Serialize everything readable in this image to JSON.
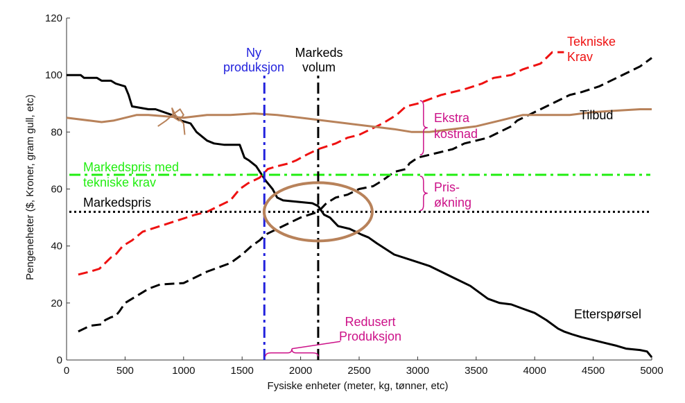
{
  "chart_data": {
    "type": "line",
    "xlabel": "Fysiske enheter (meter, kg, tønner, etc)",
    "ylabel": "Pengeneheter ($, Kroner, gram gull, etc)",
    "xlim": [
      0,
      5000
    ],
    "ylim": [
      0,
      120
    ],
    "xticks": [
      0,
      500,
      1000,
      1500,
      2000,
      2500,
      3000,
      3500,
      4000,
      4500,
      5000
    ],
    "yticks": [
      0,
      20,
      40,
      60,
      80,
      100,
      120
    ],
    "grid": false,
    "legend": "none",
    "series": [
      {
        "key": "demand",
        "name": "Etterspørsel",
        "color": "#000000",
        "style": "solid",
        "points": [
          [
            0,
            100
          ],
          [
            120,
            100
          ],
          [
            150,
            99
          ],
          [
            260,
            99
          ],
          [
            300,
            98
          ],
          [
            380,
            98
          ],
          [
            420,
            97
          ],
          [
            500,
            96
          ],
          [
            530,
            93
          ],
          [
            560,
            89
          ],
          [
            700,
            88
          ],
          [
            760,
            88
          ],
          [
            900,
            86
          ],
          [
            980,
            84
          ],
          [
            1060,
            83
          ],
          [
            1110,
            80
          ],
          [
            1200,
            77
          ],
          [
            1260,
            76
          ],
          [
            1350,
            75.5
          ],
          [
            1480,
            75.5
          ],
          [
            1520,
            71
          ],
          [
            1560,
            70
          ],
          [
            1620,
            68
          ],
          [
            1700,
            63
          ],
          [
            1760,
            60
          ],
          [
            1800,
            57
          ],
          [
            1850,
            56
          ],
          [
            2100,
            55
          ],
          [
            2150,
            54
          ],
          [
            2200,
            51
          ],
          [
            2250,
            50
          ],
          [
            2320,
            47
          ],
          [
            2420,
            46
          ],
          [
            2520,
            44
          ],
          [
            2580,
            43
          ],
          [
            2650,
            41
          ],
          [
            2800,
            37
          ],
          [
            2950,
            35
          ],
          [
            3100,
            33
          ],
          [
            3200,
            31
          ],
          [
            3300,
            29
          ],
          [
            3350,
            28
          ],
          [
            3450,
            26
          ],
          [
            3600,
            21.5
          ],
          [
            3700,
            20
          ],
          [
            3800,
            19.5
          ],
          [
            3900,
            18
          ],
          [
            4000,
            16.5
          ],
          [
            4100,
            14
          ],
          [
            4200,
            11
          ],
          [
            4250,
            10
          ],
          [
            4320,
            9
          ],
          [
            4400,
            8
          ],
          [
            4600,
            6
          ],
          [
            4700,
            5
          ],
          [
            4780,
            4
          ],
          [
            4900,
            3.5
          ],
          [
            4960,
            3
          ],
          [
            5000,
            1
          ]
        ]
      },
      {
        "key": "supply",
        "name": "Tilbud",
        "color": "#000000",
        "style": "dashed",
        "points": [
          [
            100,
            10
          ],
          [
            200,
            12
          ],
          [
            300,
            12.5
          ],
          [
            330,
            14
          ],
          [
            380,
            15
          ],
          [
            420,
            15.5
          ],
          [
            450,
            17
          ],
          [
            500,
            20
          ],
          [
            700,
            25
          ],
          [
            800,
            26.5
          ],
          [
            1000,
            27
          ],
          [
            1100,
            29
          ],
          [
            1200,
            31
          ],
          [
            1400,
            34
          ],
          [
            1500,
            37
          ],
          [
            1580,
            40
          ],
          [
            1650,
            42
          ],
          [
            1700,
            44
          ],
          [
            1800,
            46
          ],
          [
            1900,
            48
          ],
          [
            2000,
            50
          ],
          [
            2150,
            52
          ],
          [
            2220,
            55
          ],
          [
            2300,
            57
          ],
          [
            2400,
            58
          ],
          [
            2500,
            60
          ],
          [
            2620,
            61
          ],
          [
            2700,
            63
          ],
          [
            2800,
            66
          ],
          [
            2900,
            67
          ],
          [
            2930,
            69
          ],
          [
            3000,
            71
          ],
          [
            3200,
            73
          ],
          [
            3300,
            74
          ],
          [
            3400,
            76
          ],
          [
            3600,
            78
          ],
          [
            3700,
            80
          ],
          [
            3800,
            82
          ],
          [
            3850,
            84
          ],
          [
            3950,
            86
          ],
          [
            4100,
            89
          ],
          [
            4200,
            91
          ],
          [
            4300,
            93
          ],
          [
            4400,
            94
          ],
          [
            4550,
            96
          ],
          [
            4700,
            99
          ],
          [
            4800,
            101
          ],
          [
            4900,
            103
          ],
          [
            5000,
            106
          ]
        ]
      },
      {
        "key": "tech",
        "name": "Tekniske Krav",
        "color": "#ee1111",
        "style": "dashed",
        "points": [
          [
            100,
            30
          ],
          [
            200,
            31
          ],
          [
            280,
            32
          ],
          [
            330,
            34
          ],
          [
            380,
            36
          ],
          [
            420,
            37
          ],
          [
            480,
            40
          ],
          [
            560,
            42
          ],
          [
            650,
            45
          ],
          [
            800,
            47
          ],
          [
            950,
            49
          ],
          [
            1100,
            51
          ],
          [
            1200,
            52
          ],
          [
            1300,
            54
          ],
          [
            1400,
            56
          ],
          [
            1480,
            60
          ],
          [
            1550,
            62
          ],
          [
            1650,
            64
          ],
          [
            1720,
            67
          ],
          [
            1800,
            68
          ],
          [
            1900,
            69
          ],
          [
            1960,
            70
          ],
          [
            2050,
            72
          ],
          [
            2150,
            74
          ],
          [
            2300,
            76
          ],
          [
            2400,
            78
          ],
          [
            2500,
            79
          ],
          [
            2600,
            81
          ],
          [
            2700,
            83
          ],
          [
            2820,
            86
          ],
          [
            2900,
            89
          ],
          [
            3000,
            90
          ],
          [
            3200,
            93
          ],
          [
            3400,
            95
          ],
          [
            3550,
            97
          ],
          [
            3650,
            99
          ],
          [
            3800,
            100
          ],
          [
            3900,
            102
          ],
          [
            4050,
            104
          ],
          [
            4100,
            106
          ],
          [
            4150,
            108
          ],
          [
            4250,
            108
          ]
        ]
      },
      {
        "key": "tilbud_brown",
        "name": "",
        "color": "#b8825a",
        "style": "solid",
        "points": [
          [
            0,
            85
          ],
          [
            200,
            84
          ],
          [
            300,
            83.5
          ],
          [
            400,
            84
          ],
          [
            500,
            85
          ],
          [
            600,
            86
          ],
          [
            700,
            86
          ],
          [
            850,
            85.5
          ],
          [
            1000,
            85
          ],
          [
            1200,
            86
          ],
          [
            1400,
            86
          ],
          [
            1600,
            86.5
          ],
          [
            1800,
            86
          ],
          [
            2000,
            85
          ],
          [
            2200,
            84
          ],
          [
            2400,
            83
          ],
          [
            2600,
            82
          ],
          [
            2800,
            81
          ],
          [
            2950,
            80
          ],
          [
            3100,
            80
          ],
          [
            3300,
            81
          ],
          [
            3500,
            82
          ],
          [
            3700,
            84
          ],
          [
            3900,
            86
          ],
          [
            4100,
            86
          ],
          [
            4300,
            86
          ],
          [
            4500,
            87
          ],
          [
            4700,
            87.5
          ],
          [
            4900,
            88
          ],
          [
            5000,
            88
          ]
        ]
      }
    ],
    "reference_lines": [
      {
        "key": "markedspris",
        "orientation": "horizontal",
        "value": 52,
        "color": "#000000",
        "style": "dotted"
      },
      {
        "key": "markedspris_tech",
        "orientation": "horizontal",
        "value": 65,
        "color": "#22ee11",
        "style": "dashdot"
      },
      {
        "key": "ny_produksjon",
        "orientation": "vertical",
        "value": 1690,
        "color": "#2222dd",
        "style": "dashdot"
      },
      {
        "key": "markeds_volum",
        "orientation": "vertical",
        "value": 2150,
        "color": "#000000",
        "style": "dashdot"
      }
    ],
    "annotations": {
      "tekniske_krav_1": "Tekniske",
      "tekniske_krav_2": "Krav",
      "tilbud": "Tilbud",
      "ekstra_1": "Ekstra",
      "ekstra_2": "kostnad",
      "pris_1": "Pris-",
      "pris_2": "økning",
      "markedspris_tech_1": "Markedspris med",
      "markedspris_tech_2": "tekniske krav",
      "markedspris": "Markedspris",
      "ny_1": "Ny",
      "ny_2": "produksjon",
      "markeds_1": "Markeds",
      "markeds_2": "volum",
      "redusert_1": "Redusert",
      "redusert_2": "Produksjon",
      "etterspoersel": "Etterspørsel"
    },
    "colors": {
      "magenta": "#cc1188",
      "brown": "#b8825a",
      "blue": "#2222dd",
      "green": "#22ee11",
      "red": "#ee1111"
    }
  }
}
